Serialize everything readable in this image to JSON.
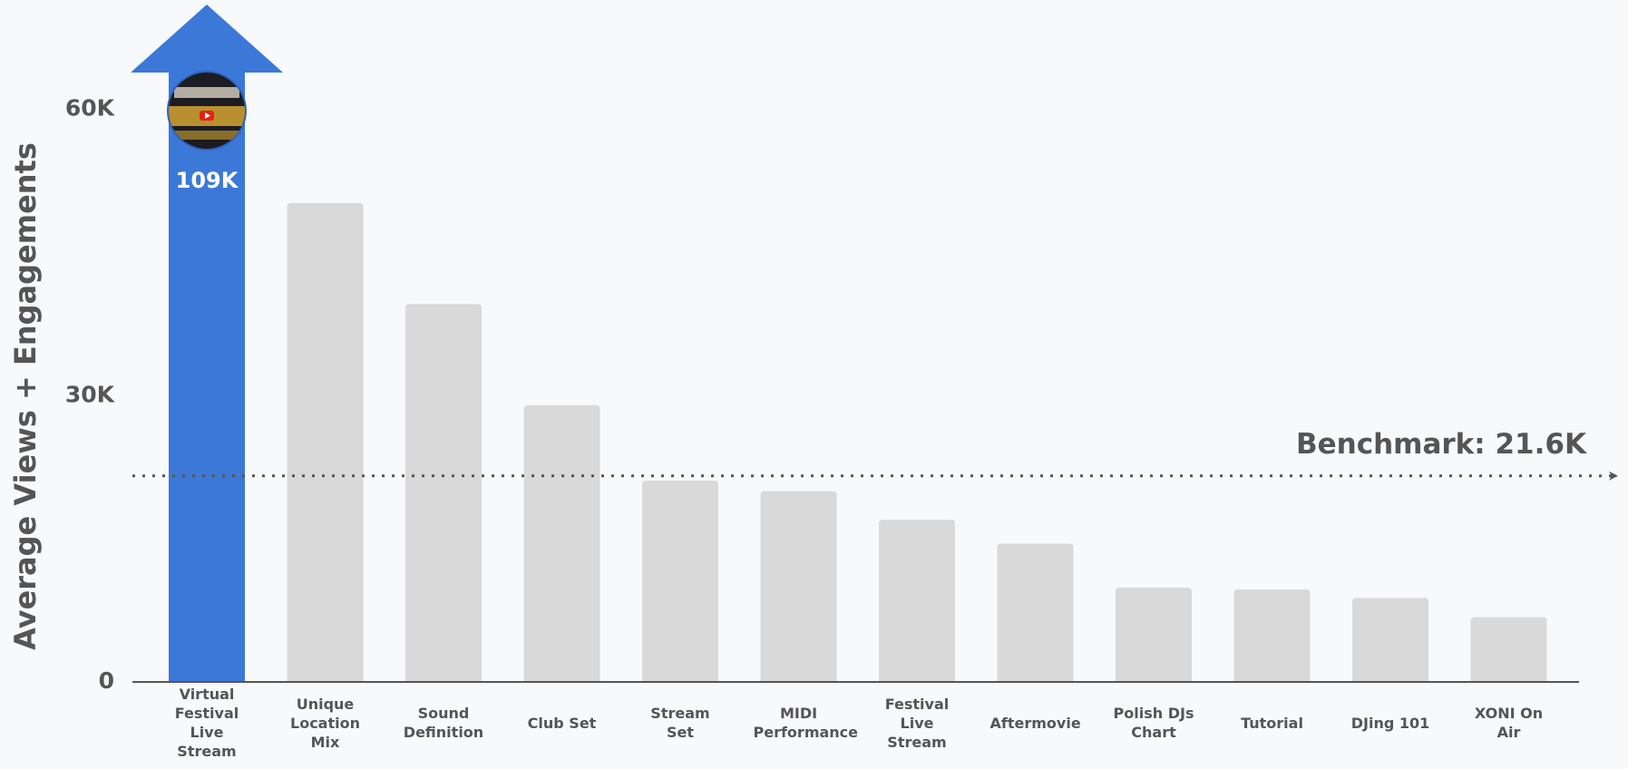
{
  "chart_data": {
    "type": "bar",
    "y_label": "Average Views + Engagements",
    "categories": [
      "Virtual Festival Live Stream",
      "Unique Location Mix",
      "Sound Definition",
      "Club Set",
      "Stream Set",
      "MIDI Performance",
      "Festival Live Stream",
      "Aftermovie",
      "Polish DJs Chart",
      "Tutorial",
      "DJing 101",
      "XONI On Air"
    ],
    "values": [
      109000,
      50200,
      39600,
      29000,
      21100,
      20000,
      17000,
      14500,
      9900,
      9700,
      8800,
      6800
    ],
    "value_labels": [
      "109K",
      null,
      null,
      null,
      null,
      null,
      null,
      null,
      null,
      null,
      null,
      null
    ],
    "colors": [
      "#3b78d8",
      "#d9d9d9",
      "#d9d9d9",
      "#d9d9d9",
      "#d9d9d9",
      "#d9d9d9",
      "#d9d9d9",
      "#d9d9d9",
      "#d9d9d9",
      "#d9d9d9",
      "#d9d9d9",
      "#d9d9d9"
    ],
    "ylim": [
      0,
      71000
    ],
    "yticks": [
      0,
      {
        "value": 30000,
        "label": "30K"
      },
      {
        "value": 60000,
        "label": "60K"
      }
    ],
    "benchmark": {
      "value": 21600,
      "label": "Benchmark: 21.6K"
    }
  }
}
